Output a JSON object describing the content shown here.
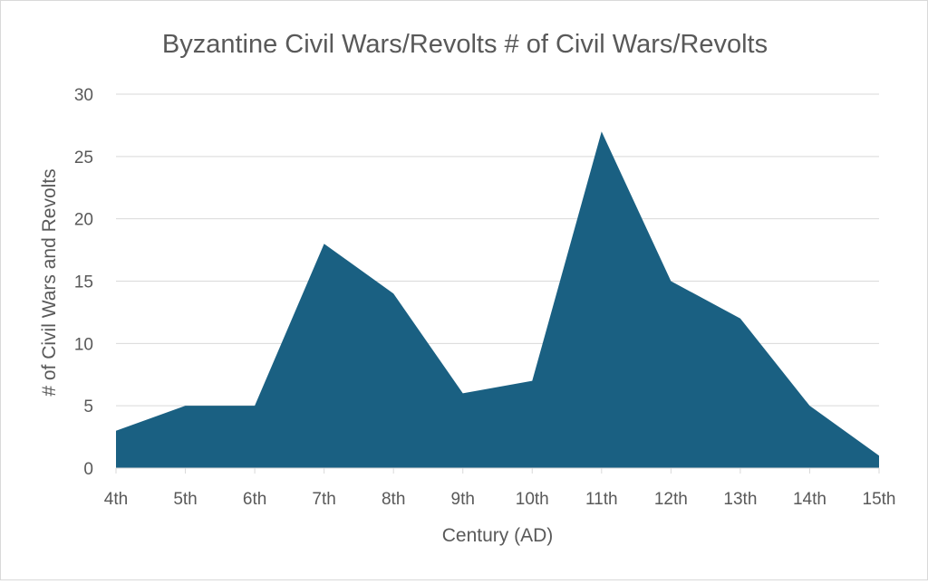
{
  "chart_data": {
    "type": "area",
    "title": "Byzantine Civil Wars/Revolts # of Civil Wars/Revolts",
    "xlabel": "Century (AD)",
    "ylabel": "# of Civil Wars and Revolts",
    "categories": [
      "4th",
      "5th",
      "6th",
      "7th",
      "8th",
      "9th",
      "10th",
      "11th",
      "12th",
      "13th",
      "14th",
      "15th"
    ],
    "series": [
      {
        "values": [
          3,
          5,
          5,
          18,
          14,
          6,
          7,
          27,
          15,
          12,
          5,
          1
        ]
      }
    ],
    "ylim": [
      0,
      30
    ],
    "yticks": [
      "0",
      "5",
      "10",
      "15",
      "20",
      "25",
      "30"
    ],
    "grid": true,
    "legend": "none",
    "colors": {
      "area": "#1a6082",
      "grid": "#d9d9d9",
      "text": "#595959"
    }
  }
}
